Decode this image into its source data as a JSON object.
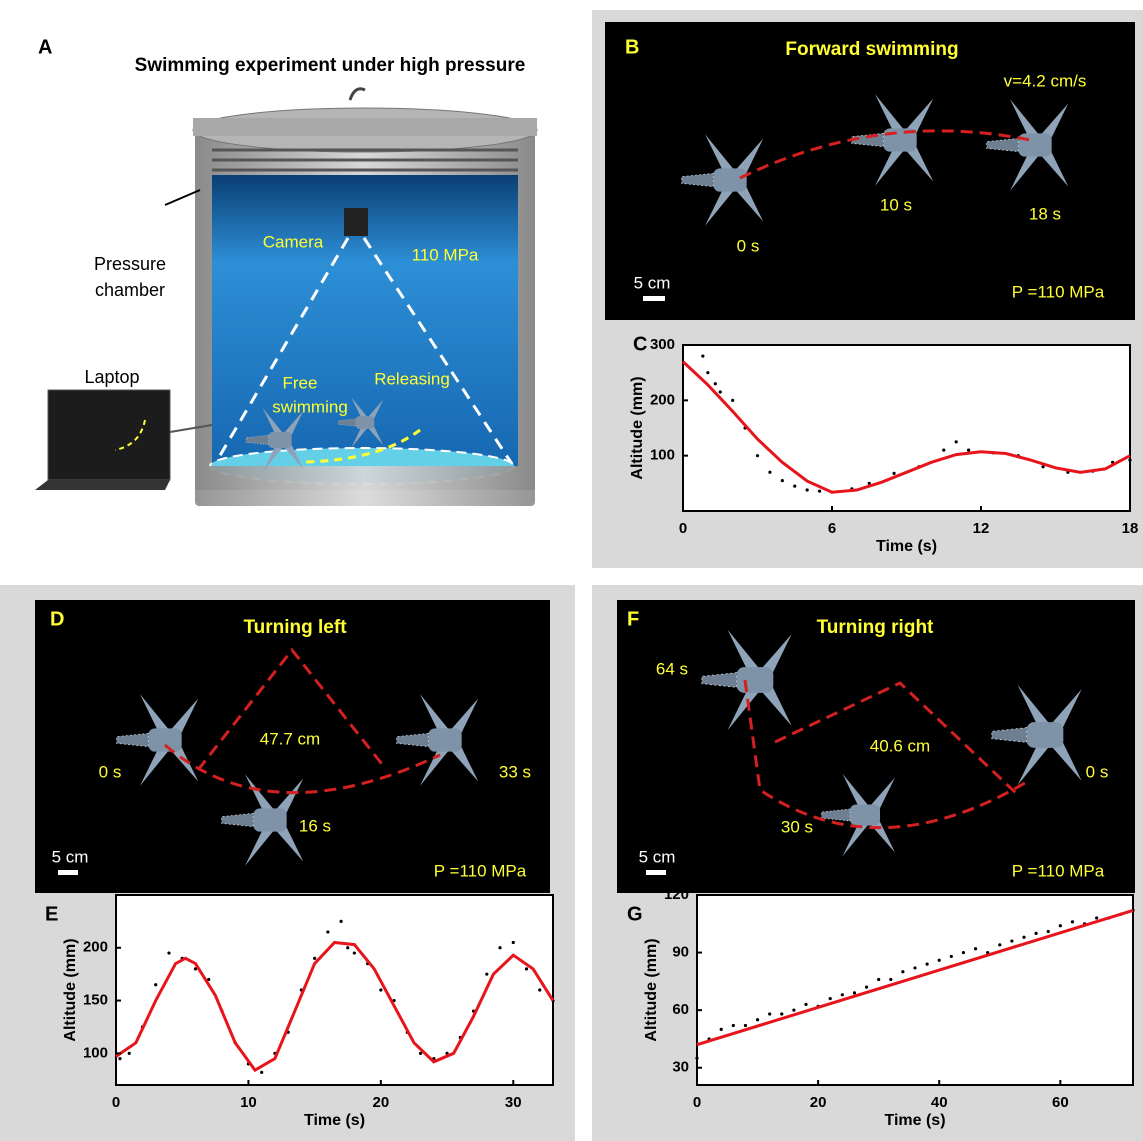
{
  "panel_a": {
    "label": "A",
    "title": "Swimming experiment under high pressure",
    "pressure_chamber": [
      "Pressure",
      "chamber"
    ],
    "laptop": "Laptop",
    "camera": "Camera",
    "pressure": "110 MPa",
    "free_swimming": [
      "Free",
      "swimming"
    ],
    "releasing": "Releasing"
  },
  "panel_b": {
    "label": "B",
    "title": "Forward swimming",
    "speed": "v=4.2 cm/s",
    "times": [
      "0 s",
      "10 s",
      "18 s"
    ],
    "scale": "5 cm",
    "pressure": "P =110 MPa"
  },
  "panel_d": {
    "label": "D",
    "title": "Turning left",
    "distance": "47.7 cm",
    "times": [
      "0 s",
      "16 s",
      "33 s"
    ],
    "scale": "5 cm",
    "pressure": "P =110 MPa"
  },
  "panel_f": {
    "label": "F",
    "title": "Turning right",
    "distance": "40.6 cm",
    "times": [
      "64 s",
      "30 s",
      "0 s"
    ],
    "scale": "5 cm",
    "pressure": "P =110 MPa"
  },
  "chart_data": [
    {
      "type": "line",
      "label": "C",
      "x_label": "Time (s)",
      "y_label": "Altitude (mm)",
      "xlim": [
        0,
        18
      ],
      "ylim": [
        0,
        300
      ],
      "xticks": [
        0,
        6,
        12,
        18
      ],
      "yticks": [
        100,
        200,
        300
      ],
      "series": [
        {
          "style": "points",
          "color": "#000000",
          "x": [
            0.8,
            1,
            1.3,
            1.5,
            2,
            2.5,
            3,
            3.5,
            4,
            4.5,
            5,
            5.5,
            6,
            6.8,
            7.5,
            8.5,
            9.5,
            10.5,
            11,
            11.5,
            12.5,
            13.5,
            14.5,
            15.5,
            16.5,
            17.3,
            18
          ],
          "values": [
            280,
            250,
            230,
            215,
            200,
            150,
            100,
            70,
            55,
            45,
            38,
            36,
            34,
            40,
            50,
            68,
            80,
            110,
            125,
            110,
            105,
            100,
            80,
            70,
            72,
            88,
            92
          ]
        },
        {
          "style": "line",
          "color": "#e8141b",
          "x": [
            0,
            1,
            2,
            3,
            4,
            5,
            6,
            7,
            8,
            9,
            10,
            11,
            12,
            13,
            14,
            15,
            16,
            17,
            18
          ],
          "values": [
            270,
            228,
            180,
            130,
            88,
            54,
            34,
            38,
            52,
            70,
            88,
            102,
            107,
            104,
            92,
            78,
            70,
            76,
            100
          ]
        }
      ]
    },
    {
      "type": "line",
      "label": "E",
      "x_label": "Time (s)",
      "y_label": "Altitude (mm)",
      "xlim": [
        0,
        33
      ],
      "ylim": [
        70,
        250
      ],
      "xticks": [
        0,
        10,
        20,
        30
      ],
      "yticks": [
        100,
        150,
        200
      ],
      "series": [
        {
          "style": "points",
          "color": "#000000",
          "x": [
            0.3,
            1,
            2,
            3,
            4,
            5,
            6,
            7,
            8,
            9,
            10,
            11,
            12,
            13,
            14,
            15,
            16,
            17,
            17.5,
            18,
            19,
            20,
            21,
            22,
            23,
            24,
            25,
            26,
            27,
            28,
            29,
            30,
            31,
            32,
            33
          ],
          "values": [
            95,
            100,
            125,
            165,
            195,
            190,
            180,
            170,
            140,
            110,
            90,
            82,
            100,
            120,
            160,
            190,
            215,
            225,
            200,
            195,
            185,
            160,
            150,
            120,
            100,
            95,
            100,
            115,
            140,
            175,
            200,
            205,
            180,
            160,
            150
          ]
        },
        {
          "style": "line",
          "color": "#e8141b",
          "x": [
            0,
            1.5,
            3,
            4.5,
            5.25,
            6,
            7.5,
            9,
            10.5,
            12,
            13.5,
            15,
            16.5,
            18,
            19.5,
            21,
            22.5,
            24,
            25.5,
            27,
            28.5,
            30,
            31.5,
            33
          ],
          "values": [
            97,
            110,
            150,
            185,
            190,
            185,
            155,
            110,
            84,
            95,
            140,
            185,
            205,
            203,
            180,
            145,
            110,
            92,
            100,
            135,
            175,
            193,
            180,
            150
          ]
        }
      ]
    },
    {
      "type": "line",
      "label": "G",
      "x_label": "Time (s)",
      "y_label": "Altitude (mm)",
      "xlim": [
        0,
        72
      ],
      "ylim": [
        21,
        120
      ],
      "xticks": [
        0,
        20,
        40,
        60
      ],
      "yticks": [
        30,
        60,
        90,
        120
      ],
      "series": [
        {
          "style": "points",
          "color": "#000000",
          "x": [
            0,
            2,
            4,
            6,
            8,
            10,
            12,
            14,
            16,
            18,
            20,
            22,
            24,
            26,
            28,
            30,
            32,
            34,
            36,
            38,
            40,
            42,
            44,
            46,
            48,
            50,
            52,
            54,
            56,
            58,
            60,
            62,
            64,
            66,
            68,
            70,
            72
          ],
          "values": [
            35,
            45,
            50,
            52,
            52,
            55,
            58,
            58,
            60,
            63,
            62,
            66,
            68,
            69,
            72,
            76,
            76,
            80,
            82,
            84,
            86,
            88,
            90,
            92,
            90,
            94,
            96,
            98,
            100,
            101,
            104,
            106,
            105,
            108,
            108,
            110,
            112
          ]
        },
        {
          "style": "line",
          "color": "#e8141b",
          "x": [
            0,
            72
          ],
          "values": [
            42,
            112
          ]
        }
      ]
    }
  ]
}
